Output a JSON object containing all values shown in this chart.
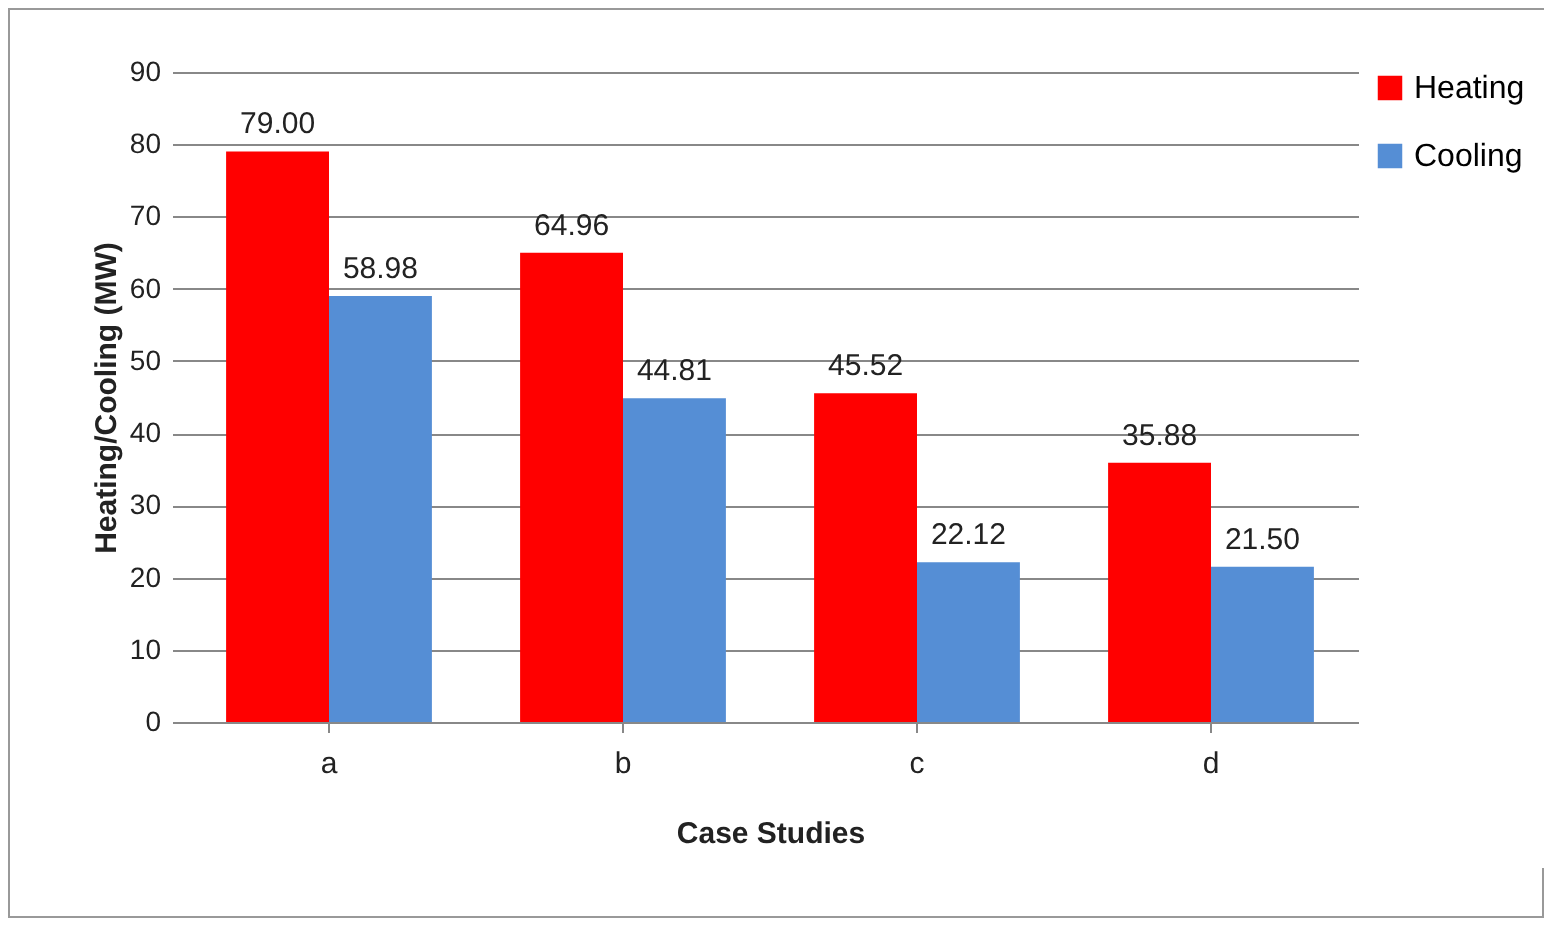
{
  "chart_data": {
    "type": "bar",
    "xlabel": "Case Studies",
    "ylabel": "Heating/Cooling (MW)",
    "categories": [
      "a",
      "b",
      "c",
      "d"
    ],
    "series": [
      {
        "name": "Heating",
        "color": "#ff0000",
        "values": [
          79,
          64.96,
          45.52,
          35.88
        ],
        "value_labels": [
          "79.00",
          "64.96",
          "45.52",
          "35.88"
        ]
      },
      {
        "name": "Cooling",
        "color": "#558ed5",
        "values": [
          58.98,
          44.81,
          22.12,
          21.5
        ],
        "value_labels": [
          "58.98",
          "44.81",
          "22.12",
          "21.50"
        ]
      }
    ],
    "ylim": [
      0,
      90
    ],
    "yticks": [
      0,
      10,
      20,
      30,
      40,
      50,
      60,
      70,
      80,
      90
    ],
    "grid": "y",
    "legend": "right"
  }
}
